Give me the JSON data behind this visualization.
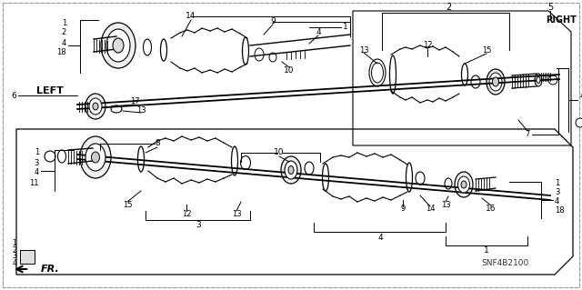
{
  "bg_color": "#ffffff",
  "diagram_code": "SNF4B2100",
  "label_LEFT": "LEFT",
  "label_RIGHT": "RIGHT",
  "label_FR": "FR.",
  "ref_6": "6",
  "ref_5": "5"
}
